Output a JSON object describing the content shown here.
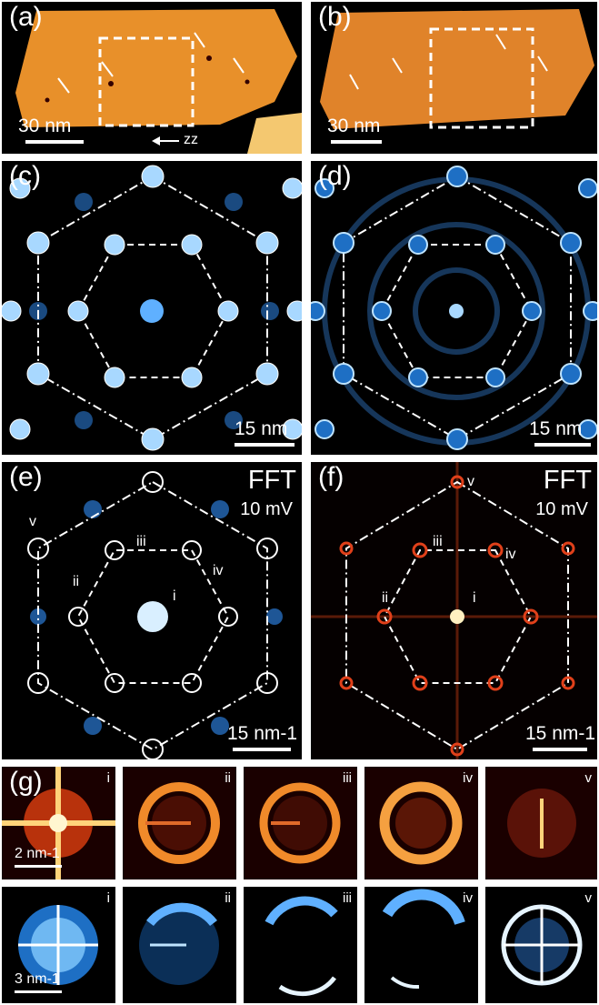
{
  "panels": {
    "a": {
      "label": "(a)",
      "scale": "30 nm",
      "direction": "zz"
    },
    "b": {
      "label": "(b)",
      "scale": "30 nm"
    },
    "c": {
      "label": "(c)",
      "scale": "15 nm"
    },
    "d": {
      "label": "(d)",
      "scale": "15 nm"
    },
    "e": {
      "label": "(e)",
      "corner": "FFT",
      "sub": "10 mV",
      "scale": "15 nm-1",
      "roman": [
        "i",
        "ii",
        "iii",
        "iv",
        "v"
      ]
    },
    "f": {
      "label": "(f)",
      "corner": "FFT",
      "sub": "10 mV",
      "scale": "15 nm-1",
      "roman": [
        "i",
        "ii",
        "iii",
        "iv",
        "v"
      ]
    },
    "g": {
      "label": "(g)",
      "top_scale": "2 nm-1",
      "bottom_scale": "3 nm-1",
      "tiles": [
        "i",
        "ii",
        "iii",
        "iv",
        "v"
      ]
    }
  },
  "colors": {
    "topo": "#e8902a",
    "blue": "#5fb0ff",
    "fft_red": "#e0401a",
    "background": "#000000"
  }
}
